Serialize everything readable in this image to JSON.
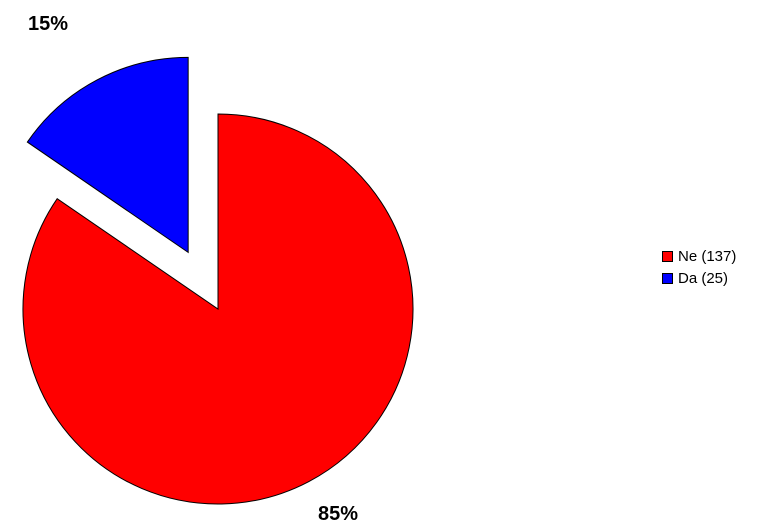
{
  "chart_data": {
    "type": "pie",
    "slices": [
      {
        "label": "Ne (137)",
        "value": 137,
        "percent_label": "85%",
        "color": "#ff0000"
      },
      {
        "label": "Da (25)",
        "value": 25,
        "percent_label": "15%",
        "color": "#0000ff"
      }
    ],
    "exploded_slice": "Da (25)",
    "legend_position": "right"
  }
}
